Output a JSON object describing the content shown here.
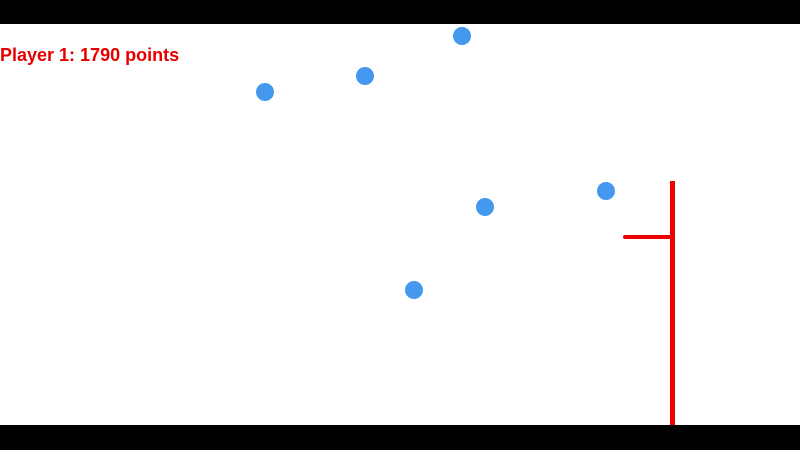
{
  "hud": {
    "score_text": "Player 1: 1790 points",
    "score_color": "#e50000"
  },
  "balls": {
    "color": "#4499ee",
    "count": 6
  },
  "paddle": {
    "color": "#ee0000"
  },
  "colors": {
    "background": "#ffffff",
    "letterbox": "#000000"
  }
}
